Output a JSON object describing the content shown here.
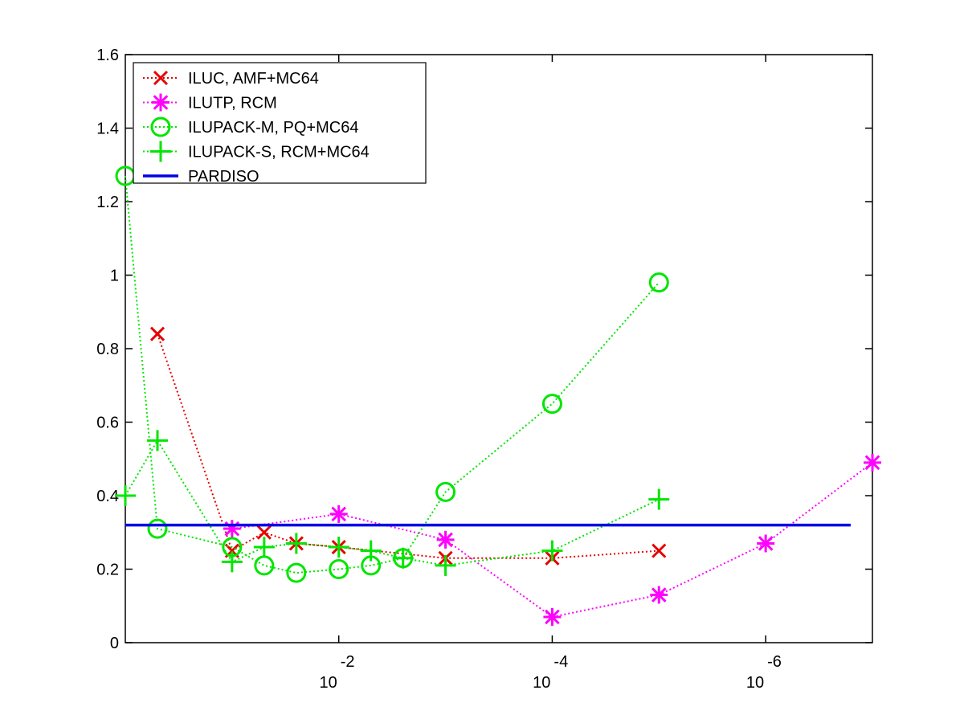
{
  "chart_data": {
    "type": "line",
    "title": "",
    "xlabel": "",
    "ylabel": "",
    "x_scale": "log (decreasing)",
    "xlim": [
      1,
      1e-07
    ],
    "ylim": [
      0,
      1.6
    ],
    "grid": false,
    "legend_position": "top-left",
    "y_ticks": [
      {
        "value": 0,
        "label": "0"
      },
      {
        "value": 0.2,
        "label": "0.2"
      },
      {
        "value": 0.4,
        "label": "0.4"
      },
      {
        "value": 0.6,
        "label": "0.6"
      },
      {
        "value": 0.8,
        "label": "0.8"
      },
      {
        "value": 1.0,
        "label": "1"
      },
      {
        "value": 1.2,
        "label": "1.2"
      },
      {
        "value": 1.4,
        "label": "1.4"
      },
      {
        "value": 1.6,
        "label": "1.6"
      }
    ],
    "x_ticks": [
      {
        "value": 0.01,
        "base": "10",
        "exp": "-2"
      },
      {
        "value": 0.0001,
        "base": "10",
        "exp": "-4"
      },
      {
        "value": 1e-06,
        "base": "10",
        "exp": "-6"
      }
    ],
    "series": [
      {
        "name": "ILUC, AMF+MC64",
        "color": "#e60000",
        "marker": "x",
        "line_style": "dotted",
        "x": [
          0.5,
          0.1,
          0.05,
          0.025,
          0.01,
          0.001,
          0.0001,
          1e-05
        ],
        "y": [
          0.84,
          0.25,
          0.3,
          0.27,
          0.26,
          0.23,
          0.23,
          0.25
        ]
      },
      {
        "name": "ILUTP, RCM",
        "color": "#ff00ff",
        "marker": "asterisk",
        "line_style": "dotted",
        "x": [
          0.1,
          0.01,
          0.001,
          0.0001,
          1e-05,
          1e-06,
          1e-07
        ],
        "y": [
          0.31,
          0.35,
          0.28,
          0.07,
          0.13,
          0.27,
          0.49
        ]
      },
      {
        "name": "ILUPACK-M, PQ+MC64",
        "color": "#00e600",
        "marker": "circle",
        "line_style": "dotted",
        "x": [
          1,
          0.5,
          0.1,
          0.05,
          0.025,
          0.01,
          0.005,
          0.0025,
          0.001,
          0.0001,
          1e-05
        ],
        "y": [
          1.27,
          0.31,
          0.26,
          0.21,
          0.19,
          0.2,
          0.21,
          0.23,
          0.41,
          0.65,
          0.98
        ]
      },
      {
        "name": "ILUPACK-S, RCM+MC64",
        "color": "#00e600",
        "marker": "plus",
        "line_style": "dotted",
        "x": [
          1,
          0.5,
          0.1,
          0.05,
          0.025,
          0.01,
          0.005,
          0.0025,
          0.001,
          0.0001,
          1e-05
        ],
        "y": [
          0.4,
          0.55,
          0.22,
          0.26,
          0.27,
          0.26,
          0.25,
          0.23,
          0.21,
          0.25,
          0.39
        ]
      },
      {
        "name": "PARDISO",
        "color": "#0000e6",
        "marker": "none",
        "line_style": "solid",
        "x": [
          1,
          1.6e-07
        ],
        "y": [
          0.32,
          0.32
        ]
      }
    ]
  }
}
